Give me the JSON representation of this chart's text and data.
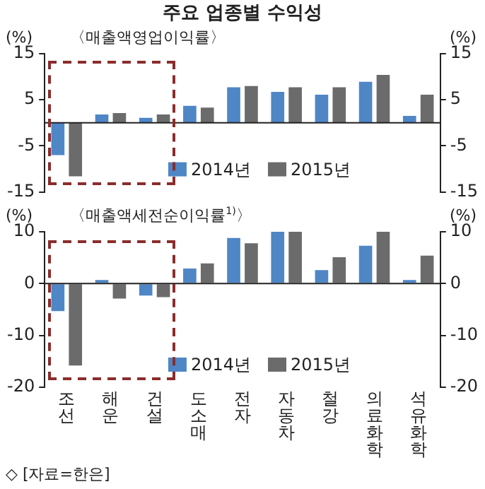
{
  "chart_data": [
    {
      "type": "bar",
      "title": "주요 업종별 수익성",
      "subtitle": "〈매출액영업이익률〉",
      "ylabel": "(%)",
      "y2label": "(%)",
      "categories": [
        "조선",
        "해운",
        "건설",
        "도소매",
        "전자",
        "자동차",
        "철강",
        "의료화학",
        "석유화학"
      ],
      "series": [
        {
          "name": "2014년",
          "color": "#4f86c6",
          "values": [
            -7.0,
            1.8,
            1.1,
            3.7,
            7.7,
            6.7,
            6.1,
            8.9,
            1.5
          ]
        },
        {
          "name": "2015년",
          "color": "#6b6b6b",
          "values": [
            -11.6,
            2.1,
            1.8,
            3.3,
            8.0,
            7.7,
            7.7,
            10.4,
            6.1
          ]
        }
      ],
      "ylim": [
        -15,
        15
      ],
      "yticks": [
        -15,
        -5,
        5,
        15
      ],
      "y2lim": [
        -15,
        15
      ],
      "y2ticks": [
        -15,
        -5,
        5,
        15
      ],
      "legend": "bottom",
      "tick_labels": "y"
    },
    {
      "type": "bar",
      "subtitle": "〈매출액세전순이익률$^{1)}$〉",
      "ylabel": "(%)",
      "y2label": "(%)",
      "categories": [
        "조선",
        "해운",
        "건설",
        "도소매",
        "전자",
        "자동차",
        "철강",
        "의료화학",
        "석유화학"
      ],
      "series": [
        {
          "name": "2014년",
          "color": "#4f86c6",
          "values": [
            -5.3,
            0.7,
            -2.3,
            2.9,
            8.8,
            10.0,
            2.6,
            7.3,
            0.7
          ]
        },
        {
          "name": "2015년",
          "color": "#6b6b6b",
          "values": [
            -15.8,
            -2.9,
            -2.6,
            3.9,
            7.8,
            10.0,
            5.1,
            10.0,
            5.4
          ]
        }
      ],
      "ylim": [
        -20,
        10
      ],
      "yticks": [
        -20,
        -10,
        0,
        10
      ],
      "y2lim": [
        -20,
        10
      ],
      "y2ticks": [
        -20,
        -10,
        0,
        10
      ],
      "legend": "bottom",
      "annotations": [
        "◇ [자료=한은]"
      ]
    }
  ]
}
